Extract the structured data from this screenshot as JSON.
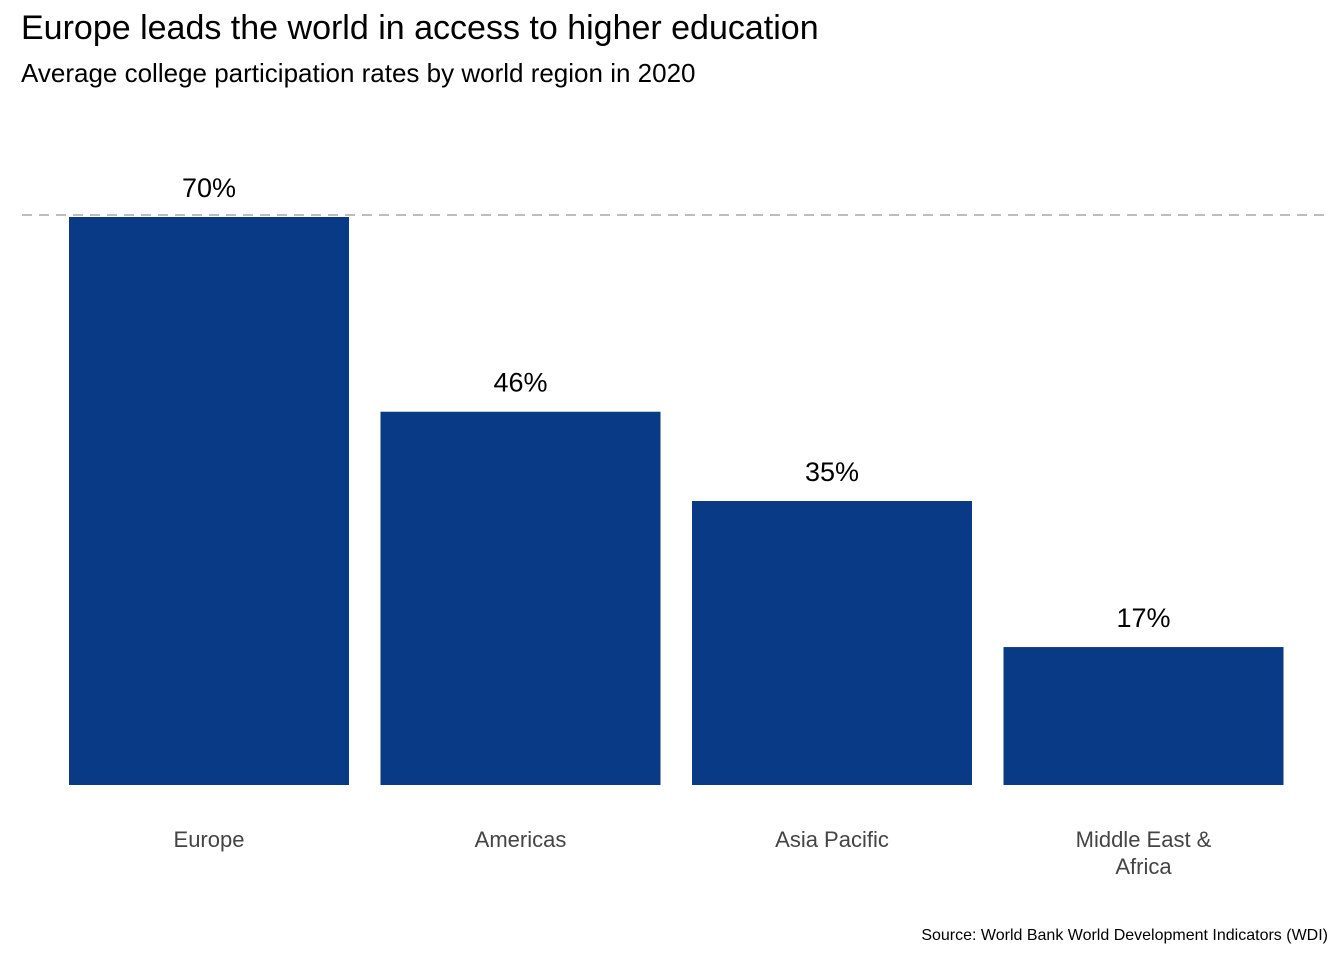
{
  "title": "Europe leads the world in access to higher education",
  "subtitle": "Average college participation rates by world region in 2020",
  "caption": "Source: World Bank World Development Indicators (WDI)",
  "colors": {
    "bar": "#083a85",
    "reference_line": "#bdbdbd",
    "axis_text": "#444444",
    "label_text": "#000000"
  },
  "chart_data": {
    "type": "bar",
    "title": "Europe leads the world in access to higher education",
    "subtitle": "Average college participation rates by world region in 2020",
    "categories": [
      [
        "Europe"
      ],
      [
        "Americas"
      ],
      [
        "Asia Pacific"
      ],
      [
        "Middle East &",
        "Africa"
      ]
    ],
    "values": [
      70,
      46,
      35,
      17
    ],
    "data_labels": [
      "70%",
      "46%",
      "35%",
      "17%"
    ],
    "xlabel": "",
    "ylabel": "",
    "ylim": [
      0,
      70
    ],
    "reference_line": 70,
    "reference_line_style": "dashed",
    "grid": false,
    "legend": "none"
  }
}
